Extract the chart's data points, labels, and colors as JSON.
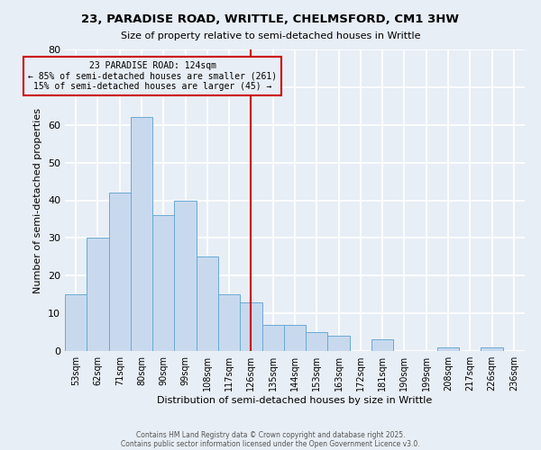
{
  "title_line1": "23, PARADISE ROAD, WRITTLE, CHELMSFORD, CM1 3HW",
  "title_line2": "Size of property relative to semi-detached houses in Writtle",
  "xlabel": "Distribution of semi-detached houses by size in Writtle",
  "ylabel": "Number of semi-detached properties",
  "categories": [
    "53sqm",
    "62sqm",
    "71sqm",
    "80sqm",
    "90sqm",
    "99sqm",
    "108sqm",
    "117sqm",
    "126sqm",
    "135sqm",
    "144sqm",
    "153sqm",
    "163sqm",
    "172sqm",
    "181sqm",
    "190sqm",
    "199sqm",
    "208sqm",
    "217sqm",
    "226sqm",
    "236sqm"
  ],
  "values": [
    15,
    30,
    42,
    62,
    36,
    40,
    25,
    15,
    13,
    7,
    7,
    5,
    4,
    0,
    3,
    0,
    0,
    1,
    0,
    1,
    0
  ],
  "bar_color": "#c8d9ee",
  "bar_edge_color": "#6aaad4",
  "vline_color": "#cc0000",
  "annotation_title": "23 PARADISE ROAD: 124sqm",
  "annotation_line1": "← 85% of semi-detached houses are smaller (261)",
  "annotation_line2": "15% of semi-detached houses are larger (45) →",
  "annotation_box_color": "#cc0000",
  "ylim": [
    0,
    80
  ],
  "yticks": [
    0,
    10,
    20,
    30,
    40,
    50,
    60,
    70,
    80
  ],
  "footnote_line1": "Contains HM Land Registry data © Crown copyright and database right 2025.",
  "footnote_line2": "Contains public sector information licensed under the Open Government Licence v3.0.",
  "background_color": "#e8eef5",
  "plot_bg_color": "#e8eef5",
  "grid_color": "#ffffff"
}
